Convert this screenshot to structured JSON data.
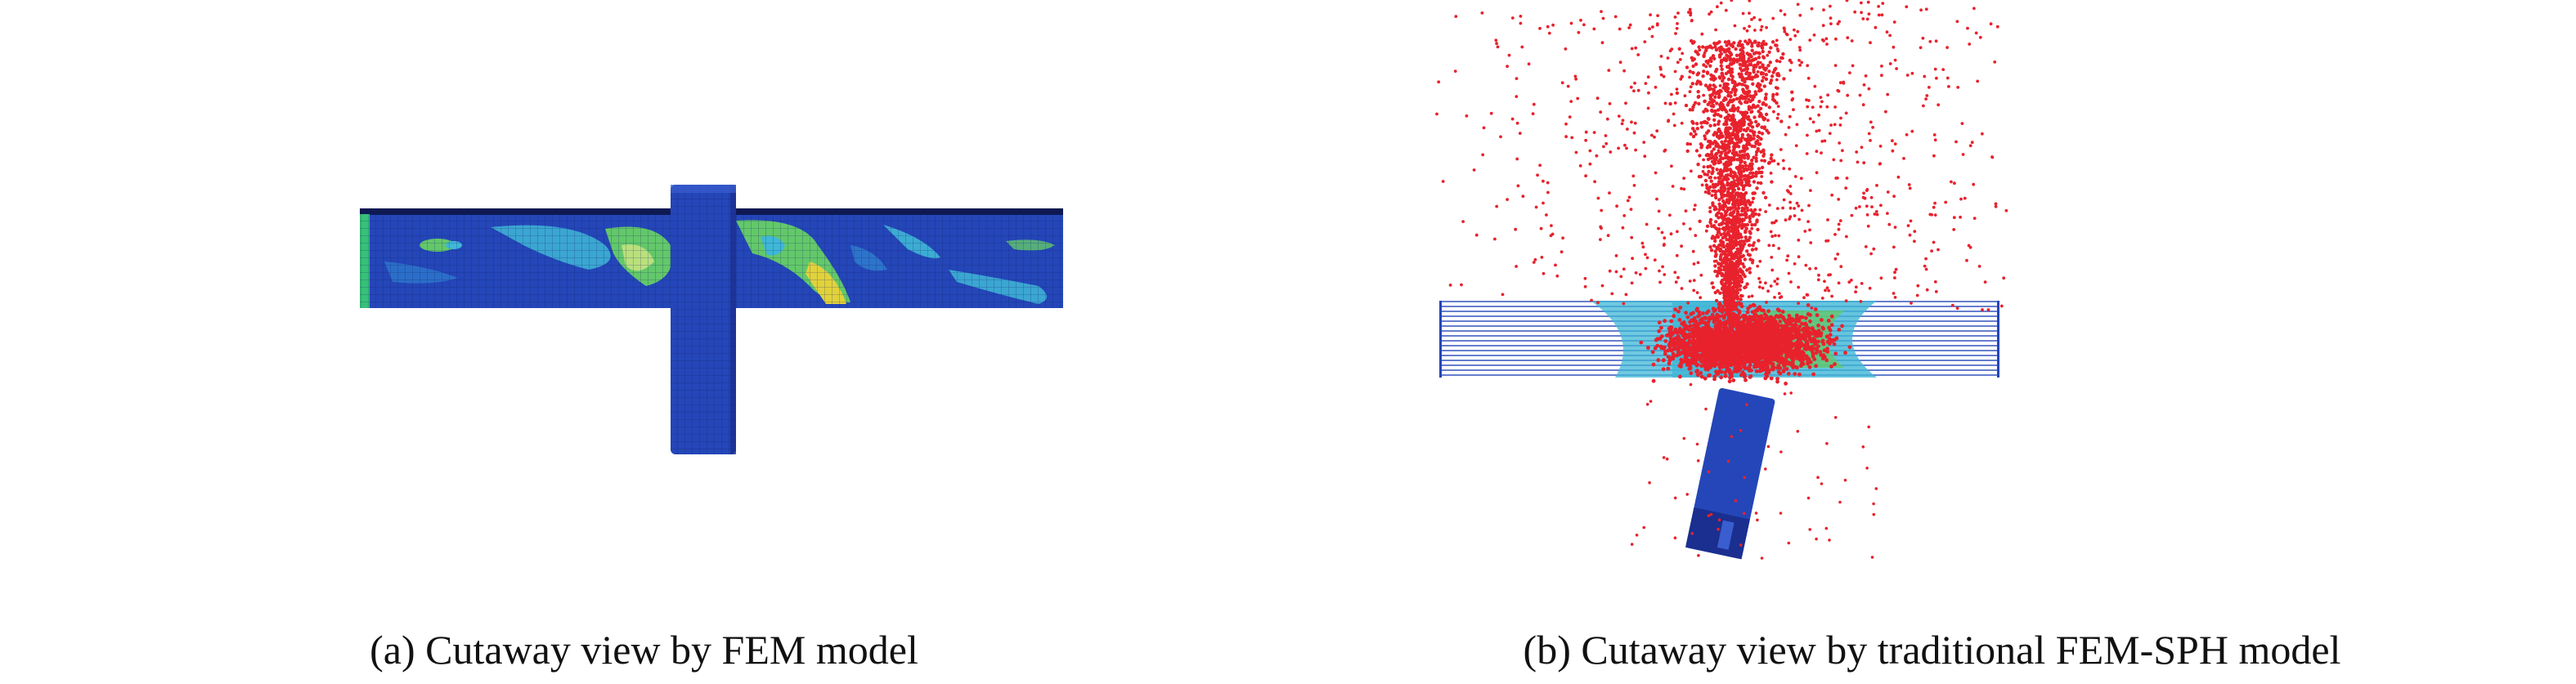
{
  "figure": {
    "panels": [
      {
        "id": "a",
        "caption": "(a) Cutaway view by FEM model",
        "content": "FEM simulation of projectile penetrating a plate, colored stress contour"
      },
      {
        "id": "b",
        "caption": "(b) Cutaway view by traditional FEM-SPH model",
        "content": "FEM-SPH simulation with red SPH particle debris cloud above plate"
      }
    ],
    "colors": {
      "plate_blue": "#2446b8",
      "plate_dark": "#1a2f8f",
      "contour_cyan": "#3fb7d6",
      "contour_green": "#63c86a",
      "contour_yellow": "#e1d23c",
      "particle_red": "#e8222d",
      "mesh_line": "#0f1f66"
    }
  }
}
